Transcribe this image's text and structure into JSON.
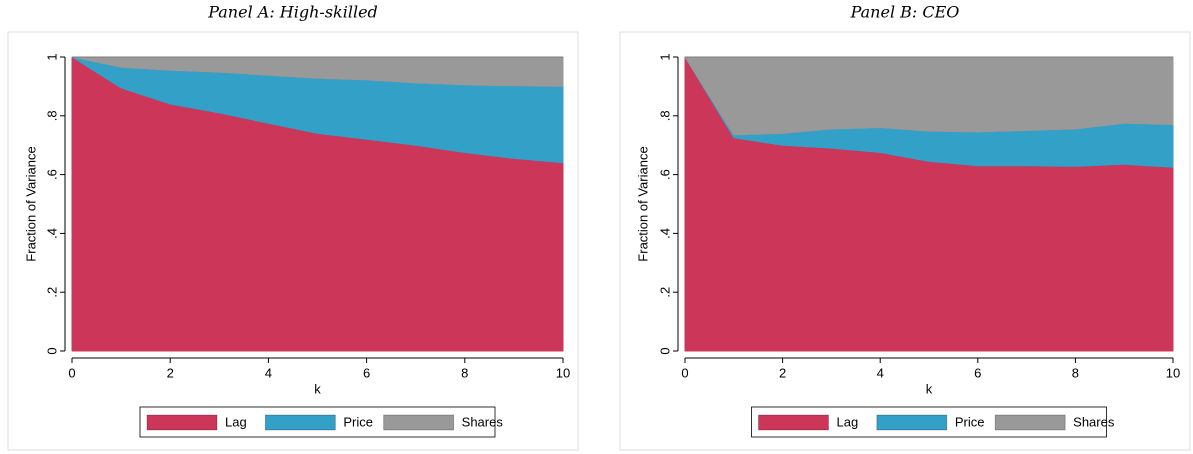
{
  "chart_data": [
    {
      "type": "stacked_area",
      "title": "Panel A: High-skilled",
      "xlabel": "k",
      "ylabel": "Fraction of Variance",
      "x": [
        0,
        1,
        2,
        3,
        4,
        5,
        6,
        7,
        8,
        9,
        10
      ],
      "series": [
        {
          "name": "Lag",
          "color": "#cc3659",
          "values": [
            1,
            0.895,
            0.84,
            0.81,
            0.775,
            0.74,
            0.72,
            0.7,
            0.675,
            0.655,
            0.64
          ]
        },
        {
          "name": "Price",
          "color": "#33a0c8",
          "values": [
            0,
            0.07,
            0.115,
            0.138,
            0.163,
            0.188,
            0.202,
            0.212,
            0.23,
            0.247,
            0.26
          ]
        },
        {
          "name": "Shares",
          "color": "#999999",
          "values": [
            0,
            0.035,
            0.045,
            0.052,
            0.062,
            0.072,
            0.078,
            0.088,
            0.095,
            0.098,
            0.1
          ]
        }
      ],
      "xlim": [
        0,
        10
      ],
      "xticks": [
        0,
        2,
        4,
        6,
        8,
        10
      ],
      "ylim": [
        0,
        1
      ],
      "yticks": [
        0,
        {
          "value": 0.2,
          "label": ".2"
        },
        {
          "value": 0.4,
          "label": ".4"
        },
        {
          "value": 0.6,
          "label": ".6"
        },
        {
          "value": 0.8,
          "label": ".8"
        },
        1
      ],
      "legend": "bottom"
    },
    {
      "type": "stacked_area",
      "title": "Panel B: CEO",
      "xlabel": "k",
      "ylabel": "Fraction of Variance",
      "x": [
        0,
        1,
        2,
        3,
        4,
        5,
        6,
        7,
        8,
        9,
        10
      ],
      "series": [
        {
          "name": "Lag",
          "color": "#cc3659",
          "values": [
            1,
            0.725,
            0.7,
            0.69,
            0.675,
            0.645,
            0.63,
            0.63,
            0.628,
            0.635,
            0.625
          ]
        },
        {
          "name": "Price",
          "color": "#33a0c8",
          "values": [
            0,
            0.01,
            0.04,
            0.065,
            0.085,
            0.103,
            0.115,
            0.12,
            0.127,
            0.14,
            0.145
          ]
        },
        {
          "name": "Shares",
          "color": "#999999",
          "values": [
            0,
            0.265,
            0.26,
            0.245,
            0.24,
            0.252,
            0.255,
            0.25,
            0.245,
            0.225,
            0.23
          ]
        }
      ],
      "xlim": [
        0,
        10
      ],
      "xticks": [
        0,
        2,
        4,
        6,
        8,
        10
      ],
      "ylim": [
        0,
        1
      ],
      "yticks": [
        0,
        {
          "value": 0.2,
          "label": ".2"
        },
        {
          "value": 0.4,
          "label": ".4"
        },
        {
          "value": 0.6,
          "label": ".6"
        },
        {
          "value": 0.8,
          "label": ".8"
        },
        1
      ],
      "legend": "bottom"
    }
  ]
}
